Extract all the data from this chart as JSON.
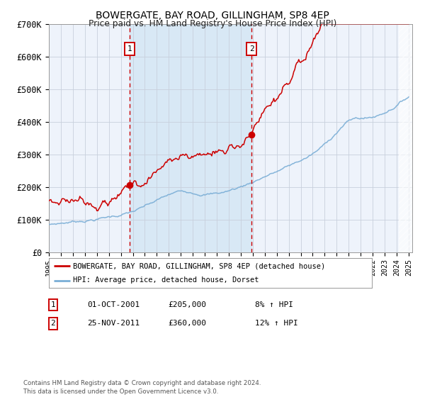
{
  "title": "BOWERGATE, BAY ROAD, GILLINGHAM, SP8 4EP",
  "subtitle": "Price paid vs. HM Land Registry's House Price Index (HPI)",
  "legend_red": "BOWERGATE, BAY ROAD, GILLINGHAM, SP8 4EP (detached house)",
  "legend_blue": "HPI: Average price, detached house, Dorset",
  "transaction1_date": "01-OCT-2001",
  "transaction1_price": 205000,
  "transaction1_pct": "8% ↑ HPI",
  "transaction2_date": "25-NOV-2011",
  "transaction2_price": 360000,
  "transaction2_pct": "12% ↑ HPI",
  "footer": "Contains HM Land Registry data © Crown copyright and database right 2024.\nThis data is licensed under the Open Government Licence v3.0.",
  "red_color": "#cc0000",
  "blue_color": "#7aaed6",
  "background_color": "#ffffff",
  "plot_bg_color": "#eef3fb",
  "shade_color": "#d8e8f5",
  "grid_color": "#c8d0dc",
  "ylim": [
    0,
    700000
  ],
  "year_start": 1995,
  "year_end": 2025,
  "t1_year": 2001.75,
  "t2_year": 2011.9
}
